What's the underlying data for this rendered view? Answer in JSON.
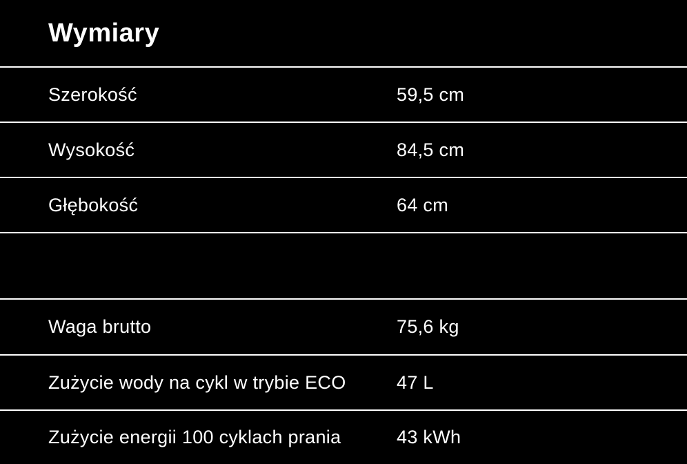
{
  "page": {
    "background_color": "#000000",
    "text_color": "#ffffff",
    "divider_color": "#ffffff"
  },
  "section": {
    "title": "Wymiary"
  },
  "table": {
    "rows": [
      {
        "label": "Szerokość",
        "value": "59,5 cm"
      },
      {
        "label": "Wysokość",
        "value": "84,5 cm"
      },
      {
        "label": "Głębokość",
        "value": "64 cm"
      },
      {
        "label": "",
        "value": ""
      },
      {
        "label": "Waga brutto",
        "value": "75,6 kg"
      },
      {
        "label": "Zużycie wody na cykl w trybie ECO",
        "value": "47 L"
      },
      {
        "label": "Zużycie energii 100 cyklach prania",
        "value": "43 kWh"
      }
    ]
  }
}
